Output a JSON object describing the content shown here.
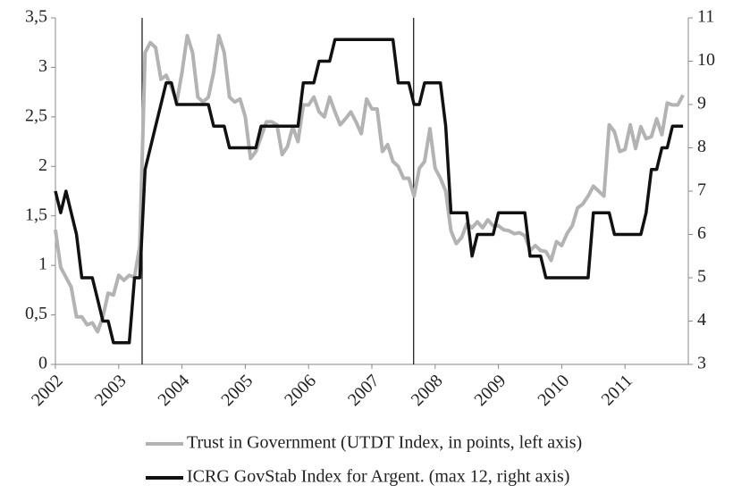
{
  "chart_data": {
    "type": "line",
    "x": [
      2002,
      2002.083,
      2002.167,
      2002.25,
      2002.333,
      2002.417,
      2002.5,
      2002.583,
      2002.667,
      2002.75,
      2002.833,
      2002.917,
      2003,
      2003.083,
      2003.167,
      2003.25,
      2003.333,
      2003.417,
      2003.5,
      2003.583,
      2003.667,
      2003.75,
      2003.833,
      2003.917,
      2004,
      2004.083,
      2004.167,
      2004.25,
      2004.333,
      2004.417,
      2004.5,
      2004.583,
      2004.667,
      2004.75,
      2004.833,
      2004.917,
      2005,
      2005.083,
      2005.167,
      2005.25,
      2005.333,
      2005.417,
      2005.5,
      2005.583,
      2005.667,
      2005.75,
      2005.833,
      2005.917,
      2006,
      2006.083,
      2006.167,
      2006.25,
      2006.333,
      2006.417,
      2006.5,
      2006.583,
      2006.667,
      2006.75,
      2006.833,
      2006.917,
      2007,
      2007.083,
      2007.167,
      2007.25,
      2007.333,
      2007.417,
      2007.5,
      2007.583,
      2007.667,
      2007.75,
      2007.833,
      2007.917,
      2008,
      2008.083,
      2008.167,
      2008.25,
      2008.333,
      2008.417,
      2008.5,
      2008.583,
      2008.667,
      2008.75,
      2008.833,
      2008.917,
      2009,
      2009.083,
      2009.167,
      2009.25,
      2009.333,
      2009.417,
      2009.5,
      2009.583,
      2009.667,
      2009.75,
      2009.833,
      2009.917,
      2010,
      2010.083,
      2010.167,
      2010.25,
      2010.333,
      2010.417,
      2010.5,
      2010.583,
      2010.667,
      2010.75,
      2010.833,
      2010.917,
      2011,
      2011.083,
      2011.167,
      2011.25,
      2011.333,
      2011.417,
      2011.5,
      2011.583,
      2011.667,
      2011.75,
      2011.833,
      2011.917
    ],
    "series": [
      {
        "name": "Trust in Government (UTDT Index, in points, left axis)",
        "color": "#b3b3b3",
        "values": [
          1.36,
          0.98,
          0.88,
          0.78,
          0.48,
          0.48,
          0.4,
          0.42,
          0.33,
          0.48,
          0.72,
          0.7,
          0.9,
          0.85,
          0.9,
          0.88,
          1.2,
          3.15,
          3.25,
          3.2,
          2.88,
          2.92,
          2.8,
          2.65,
          2.95,
          3.32,
          3.15,
          2.7,
          2.65,
          2.7,
          2.95,
          3.32,
          3.15,
          2.7,
          2.65,
          2.68,
          2.5,
          2.08,
          2.15,
          2.3,
          2.45,
          2.45,
          2.42,
          2.12,
          2.2,
          2.4,
          2.25,
          2.62,
          2.62,
          2.7,
          2.55,
          2.5,
          2.7,
          2.55,
          2.42,
          2.48,
          2.55,
          2.45,
          2.33,
          2.68,
          2.58,
          2.58,
          2.15,
          2.22,
          2.05,
          2.0,
          1.88,
          1.88,
          1.7,
          1.98,
          2.05,
          2.38,
          1.98,
          1.88,
          1.75,
          1.35,
          1.22,
          1.28,
          1.42,
          1.38,
          1.44,
          1.38,
          1.46,
          1.4,
          1.4,
          1.36,
          1.35,
          1.32,
          1.33,
          1.3,
          1.15,
          1.2,
          1.15,
          1.14,
          1.05,
          1.24,
          1.2,
          1.32,
          1.4,
          1.58,
          1.62,
          1.7,
          1.8,
          1.75,
          1.7,
          2.42,
          2.35,
          2.15,
          2.17,
          2.42,
          2.18,
          2.4,
          2.28,
          2.3,
          2.48,
          2.32,
          2.64,
          2.62,
          2.62,
          2.72
        ]
      },
      {
        "name": "ICRG GovStab Index for Argent. (max 12, right axis)",
        "color": "#111111",
        "axis": "y2",
        "values": [
          7,
          6.5,
          7,
          6.5,
          6,
          5,
          5,
          5,
          4.5,
          4,
          4,
          3.5,
          3.5,
          3.5,
          3.5,
          5,
          5,
          7.5,
          8,
          8.5,
          9,
          9.5,
          9.5,
          9,
          9,
          9,
          9,
          9,
          9,
          9,
          8.5,
          8.5,
          8.5,
          8,
          8,
          8,
          8,
          8,
          8,
          8.5,
          8.5,
          8.5,
          8.5,
          8.5,
          8.5,
          8.5,
          8.5,
          9.5,
          9.5,
          9.5,
          10,
          10,
          10,
          10.5,
          10.5,
          10.5,
          10.5,
          10.5,
          10.5,
          10.5,
          10.5,
          10.5,
          10.5,
          10.5,
          10.5,
          9.5,
          9.5,
          9.5,
          9,
          9,
          9.5,
          9.5,
          9.5,
          9.5,
          8.5,
          6.5,
          6.5,
          6.5,
          6.5,
          5.5,
          6,
          6,
          6,
          6,
          6.5,
          6.5,
          6.5,
          6.5,
          6.5,
          6.5,
          5.5,
          5.5,
          5.5,
          5,
          5,
          5,
          5,
          5,
          5,
          5,
          5,
          5,
          6.5,
          6.5,
          6.5,
          6.5,
          6,
          6,
          6,
          6,
          6,
          6,
          6.5,
          7.5,
          7.5,
          8,
          8,
          8.5,
          8.5,
          8.5
        ]
      }
    ],
    "xlim": [
      2002,
      2012
    ],
    "xticks": [
      2002,
      2003,
      2004,
      2005,
      2006,
      2007,
      2008,
      2009,
      2010,
      2011
    ],
    "ylim": [
      0,
      3.5
    ],
    "yticks": [
      0,
      {
        "value": 0.5,
        "label": "0,5"
      },
      1,
      {
        "value": 1.5,
        "label": "1,5"
      },
      2,
      {
        "value": 2.5,
        "label": "2,5"
      },
      3,
      {
        "value": 3.5,
        "label": "3,5"
      }
    ],
    "y2lim": [
      3,
      11
    ],
    "y2ticks": [
      3,
      4,
      5,
      6,
      7,
      8,
      9,
      10,
      11
    ],
    "vlines": [
      2003.37,
      2007.66
    ],
    "legend": "bottom"
  }
}
